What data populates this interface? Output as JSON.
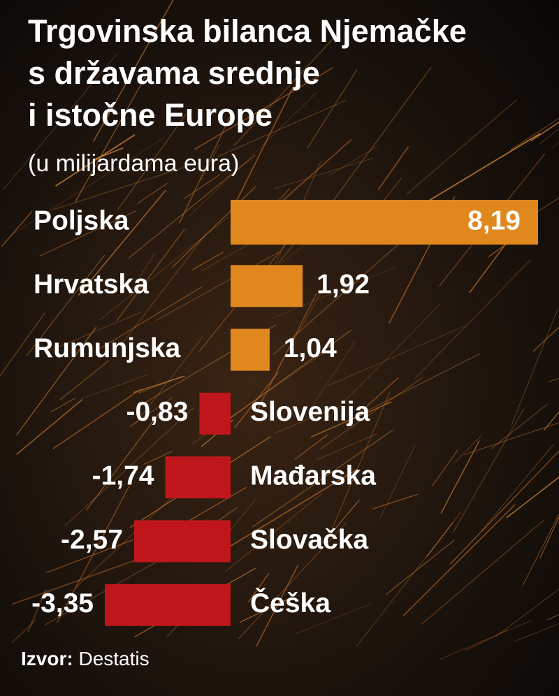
{
  "chart_data": {
    "type": "diverging-bar",
    "title": [
      "Trgovinska bilanca Njemačke",
      "s državama srednje",
      "i istočne Europe"
    ],
    "subtitle": "(u milijardama eura)",
    "categories": [
      "Poljska",
      "Hrvatska",
      "Rumunjska",
      "Slovenija",
      "Mađarska",
      "Slovačka",
      "Češka"
    ],
    "values": [
      8.19,
      1.92,
      1.04,
      -0.83,
      -1.74,
      -2.57,
      -3.35
    ],
    "value_labels": [
      "8,19",
      "1,92",
      "1,04",
      "-0,83",
      "-1,74",
      "-2,57",
      "-3,35"
    ],
    "positive_color": "#e0871d",
    "negative_color": "#bf161c",
    "source_label": "Izvor:",
    "source": "Destatis"
  }
}
